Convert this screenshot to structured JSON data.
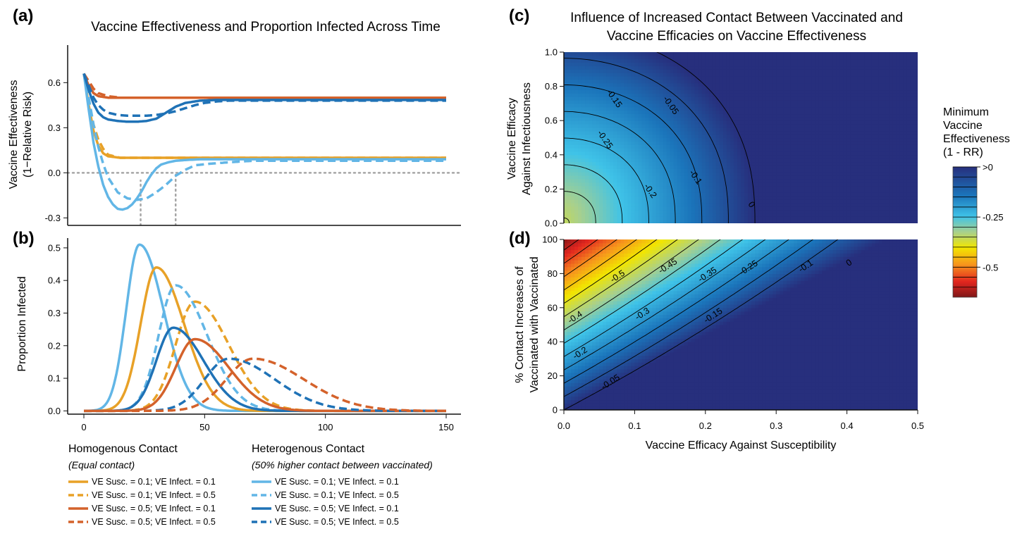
{
  "chart_data": [
    {
      "panel": "(a)",
      "type": "line",
      "title": "Vaccine Effectiveness and Proportion Infected Across Time",
      "ylabel": [
        "Vaccine Effectiveness",
        "(1−Relative Risk)"
      ],
      "xlim": [
        0,
        150
      ],
      "ylim": [
        -0.35,
        0.85
      ],
      "y_ticks": [
        "-0.3",
        "0.0",
        "0.3",
        "0.6"
      ],
      "reference_lines": [
        {
          "type": "horizontal",
          "y": 0,
          "style": "dotted",
          "color": "#a6a6a6"
        },
        {
          "type": "vertical",
          "x": 23.5,
          "y_from": -0.35,
          "y_to": -0.05,
          "style": "dotted",
          "color": "#a6a6a6"
        },
        {
          "type": "vertical",
          "x": 38,
          "y_from": -0.35,
          "y_to": 0.0,
          "style": "dotted",
          "color": "#a6a6a6"
        }
      ],
      "series": [
        {
          "name": "VE Susc. = 0.1; VE Infect. = 0.1",
          "contact": "homogenous",
          "color": "#e8a127",
          "dash": false,
          "x": [
            0,
            2,
            4,
            6,
            8,
            10,
            15,
            20,
            30,
            50,
            150
          ],
          "y": [
            0.66,
            0.45,
            0.28,
            0.18,
            0.13,
            0.11,
            0.1,
            0.1,
            0.1,
            0.1,
            0.1
          ]
        },
        {
          "name": "VE Susc. = 0.1; VE Infect. = 0.5",
          "contact": "homogenous",
          "color": "#e8a127",
          "dash": true,
          "x": [
            0,
            2,
            4,
            6,
            8,
            10,
            15,
            20,
            30,
            50,
            150
          ],
          "y": [
            0.66,
            0.48,
            0.32,
            0.22,
            0.16,
            0.12,
            0.1,
            0.1,
            0.1,
            0.1,
            0.1
          ]
        },
        {
          "name": "VE Susc. = 0.5; VE Infect. = 0.1",
          "contact": "homogenous",
          "color": "#d4622b",
          "dash": false,
          "x": [
            0,
            2,
            4,
            6,
            10,
            15,
            20,
            150
          ],
          "y": [
            0.66,
            0.58,
            0.53,
            0.51,
            0.5,
            0.5,
            0.5,
            0.5
          ]
        },
        {
          "name": "VE Susc. = 0.5; VE Infect. = 0.5",
          "contact": "homogenous",
          "color": "#d4622b",
          "dash": true,
          "x": [
            0,
            2,
            4,
            6,
            10,
            15,
            20,
            150
          ],
          "y": [
            0.66,
            0.61,
            0.56,
            0.53,
            0.51,
            0.5,
            0.5,
            0.5
          ]
        },
        {
          "name": "VE Susc. = 0.1; VE Infect. = 0.1",
          "contact": "heterogenous",
          "color": "#62b6e6",
          "dash": false,
          "x": [
            0,
            2,
            4,
            6,
            8,
            10,
            12,
            14,
            16,
            18,
            20,
            22,
            24,
            26,
            28,
            30,
            32,
            35,
            38,
            42,
            48,
            60,
            150
          ],
          "y": [
            0.66,
            0.42,
            0.2,
            0.04,
            -0.08,
            -0.16,
            -0.21,
            -0.24,
            -0.245,
            -0.235,
            -0.21,
            -0.17,
            -0.12,
            -0.06,
            -0.01,
            0.03,
            0.055,
            0.07,
            0.08,
            0.085,
            0.09,
            0.09,
            0.09
          ]
        },
        {
          "name": "VE Susc. = 0.1; VE Infect. = 0.5",
          "contact": "heterogenous",
          "color": "#62b6e6",
          "dash": true,
          "x": [
            0,
            2,
            4,
            6,
            8,
            10,
            14,
            18,
            22,
            26,
            30,
            34,
            38,
            42,
            46,
            52,
            60,
            70,
            150
          ],
          "y": [
            0.66,
            0.5,
            0.32,
            0.17,
            0.06,
            -0.03,
            -0.13,
            -0.17,
            -0.18,
            -0.17,
            -0.13,
            -0.08,
            -0.02,
            0.02,
            0.05,
            0.06,
            0.07,
            0.08,
            0.08
          ]
        },
        {
          "name": "VE Susc. = 0.5; VE Infect. = 0.1",
          "contact": "heterogenous",
          "color": "#1f72b6",
          "dash": false,
          "x": [
            0,
            2,
            4,
            6,
            8,
            10,
            14,
            18,
            22,
            26,
            30,
            34,
            38,
            42,
            48,
            55,
            65,
            150
          ],
          "y": [
            0.66,
            0.55,
            0.46,
            0.4,
            0.37,
            0.355,
            0.345,
            0.34,
            0.34,
            0.345,
            0.36,
            0.4,
            0.44,
            0.465,
            0.48,
            0.485,
            0.485,
            0.485
          ]
        },
        {
          "name": "VE Susc. = 0.5; VE Infect. = 0.5",
          "contact": "heterogenous",
          "color": "#1f72b6",
          "dash": true,
          "x": [
            0,
            2,
            4,
            6,
            8,
            10,
            14,
            18,
            22,
            26,
            30,
            34,
            38,
            42,
            46,
            50,
            55,
            60,
            70,
            80,
            150
          ],
          "y": [
            0.66,
            0.58,
            0.5,
            0.45,
            0.42,
            0.4,
            0.385,
            0.38,
            0.38,
            0.38,
            0.385,
            0.395,
            0.41,
            0.43,
            0.45,
            0.465,
            0.475,
            0.48,
            0.48,
            0.48,
            0.48
          ]
        }
      ]
    },
    {
      "panel": "(b)",
      "type": "line",
      "ylabel": "Proportion Infected",
      "xlim": [
        0,
        150
      ],
      "ylim": [
        -0.01,
        0.53
      ],
      "x_ticks": [
        "0",
        "50",
        "100",
        "150"
      ],
      "y_ticks": [
        "0.0",
        "0.1",
        "0.2",
        "0.3",
        "0.4",
        "0.5"
      ],
      "series": [
        {
          "name": "VE Susc. = 0.1; VE Infect. = 0.1",
          "contact": "heterogenous",
          "color": "#62b6e6",
          "dash": false,
          "peak_x": 23,
          "peak_y": 0.51,
          "rise_sd": 5.5,
          "fall_sd": 10
        },
        {
          "name": "VE Susc. = 0.1; VE Infect. = 0.1",
          "contact": "homogenous",
          "color": "#e8a127",
          "dash": false,
          "peak_x": 30,
          "peak_y": 0.44,
          "rise_sd": 6.5,
          "fall_sd": 11.5
        },
        {
          "name": "VE Susc. = 0.1; VE Infect. = 0.5",
          "contact": "heterogenous",
          "color": "#62b6e6",
          "dash": true,
          "peak_x": 38,
          "peak_y": 0.385,
          "rise_sd": 7,
          "fall_sd": 13
        },
        {
          "name": "VE Susc. = 0.1; VE Infect. = 0.5",
          "contact": "homogenous",
          "color": "#e8a127",
          "dash": true,
          "peak_x": 46,
          "peak_y": 0.335,
          "rise_sd": 8,
          "fall_sd": 14
        },
        {
          "name": "VE Susc. = 0.5; VE Infect. = 0.1",
          "contact": "heterogenous",
          "color": "#1f72b6",
          "dash": false,
          "peak_x": 37,
          "peak_y": 0.255,
          "rise_sd": 7,
          "fall_sd": 12.5
        },
        {
          "name": "VE Susc. = 0.5; VE Infect. = 0.1",
          "contact": "homogenous",
          "color": "#d4622b",
          "dash": false,
          "peak_x": 46,
          "peak_y": 0.22,
          "rise_sd": 8,
          "fall_sd": 14
        },
        {
          "name": "VE Susc. = 0.5; VE Infect. = 0.5",
          "contact": "heterogenous",
          "color": "#1f72b6",
          "dash": true,
          "peak_x": 60,
          "peak_y": 0.16,
          "rise_sd": 10,
          "fall_sd": 19
        },
        {
          "name": "VE Susc. = 0.5; VE Infect. = 0.5",
          "contact": "homogenous",
          "color": "#d4622b",
          "dash": true,
          "peak_x": 70,
          "peak_y": 0.16,
          "rise_sd": 11,
          "fall_sd": 21
        }
      ]
    },
    {
      "panel": "(c)",
      "type": "heatmap",
      "title": [
        "Influence of Increased Contact Between Vaccinated and",
        "Vaccine Efficacies on Vaccine Effectiveness"
      ],
      "ylabel": [
        "Vaccine Efficacy",
        "Against Infectiousness"
      ],
      "xlim": [
        0,
        0.5
      ],
      "ylim": [
        0,
        1
      ],
      "y_ticks": [
        "0.0",
        "0.2",
        "0.4",
        "0.6",
        "0.8",
        "1.0"
      ],
      "contour_labels": [
        {
          "text": "-0.05",
          "x": 0.148,
          "y": 0.68
        },
        {
          "text": "-0.15",
          "x": 0.068,
          "y": 0.72
        },
        {
          "text": "-0.25",
          "x": 0.055,
          "y": 0.48
        },
        {
          "text": "-0.1",
          "x": 0.183,
          "y": 0.26
        },
        {
          "text": "-0.2",
          "x": 0.119,
          "y": 0.18
        },
        {
          "text": "0",
          "x": 0.262,
          "y": 0.1
        }
      ]
    },
    {
      "panel": "(d)",
      "type": "heatmap",
      "xlabel": "Vaccine Efficacy Against Susceptibility",
      "ylabel": [
        "% Contact Increases of",
        "Vaccinated with Vaccinated"
      ],
      "xlim": [
        0,
        0.5
      ],
      "ylim": [
        0,
        100
      ],
      "x_ticks": [
        "0.0",
        "0.1",
        "0.2",
        "0.3",
        "0.4",
        "0.5"
      ],
      "y_ticks": [
        "0",
        "20",
        "40",
        "60",
        "80",
        "100"
      ],
      "contour_labels": [
        {
          "text": "-0.5",
          "x": 0.078,
          "y": 77
        },
        {
          "text": "-0.45",
          "x": 0.149,
          "y": 83
        },
        {
          "text": "-0.35",
          "x": 0.205,
          "y": 78
        },
        {
          "text": "-0.25",
          "x": 0.263,
          "y": 82
        },
        {
          "text": "-0.1",
          "x": 0.344,
          "y": 83
        },
        {
          "text": "0",
          "x": 0.405,
          "y": 85
        },
        {
          "text": "-0.4",
          "x": 0.018,
          "y": 53
        },
        {
          "text": "-0.3",
          "x": 0.113,
          "y": 55
        },
        {
          "text": "-0.15",
          "x": 0.213,
          "y": 54
        },
        {
          "text": "-0.2",
          "x": 0.025,
          "y": 32
        },
        {
          "text": "-0.05",
          "x": 0.068,
          "y": 15
        }
      ]
    }
  ],
  "colorbar": {
    "title": [
      "Minimum",
      "Vaccine",
      "Effectiveness",
      "(1 - RR)"
    ],
    "labels": [
      ">0",
      "-0.25",
      "-0.5"
    ],
    "label_values": [
      0,
      -0.25,
      -0.5
    ],
    "range": [
      -0.65,
      0
    ]
  },
  "legend": {
    "homogenous": {
      "title": "Homogenous Contact",
      "subtitle": "(Equal contact)",
      "items": [
        {
          "label": "VE Susc. = 0.1; VE Infect. = 0.1",
          "color": "#e8a127",
          "dash": false
        },
        {
          "label": "VE Susc. = 0.1; VE Infect. = 0.5",
          "color": "#e8a127",
          "dash": true
        },
        {
          "label": "VE Susc. = 0.5; VE Infect. = 0.1",
          "color": "#d4622b",
          "dash": false
        },
        {
          "label": "VE Susc. = 0.5; VE Infect. = 0.5",
          "color": "#d4622b",
          "dash": true
        }
      ]
    },
    "heterogenous": {
      "title": "Heterogenous Contact",
      "subtitle": "(50% higher contact between vaccinated)",
      "items": [
        {
          "label": "VE Susc. = 0.1; VE Infect. = 0.1",
          "color": "#62b6e6",
          "dash": false
        },
        {
          "label": "VE Susc. = 0.1; VE Infect. = 0.5",
          "color": "#62b6e6",
          "dash": true
        },
        {
          "label": "VE Susc. = 0.5; VE Infect. = 0.1",
          "color": "#1f72b6",
          "dash": false
        },
        {
          "label": "VE Susc. = 0.5; VE Infect. = 0.5",
          "color": "#1f72b6",
          "dash": true
        }
      ]
    }
  }
}
